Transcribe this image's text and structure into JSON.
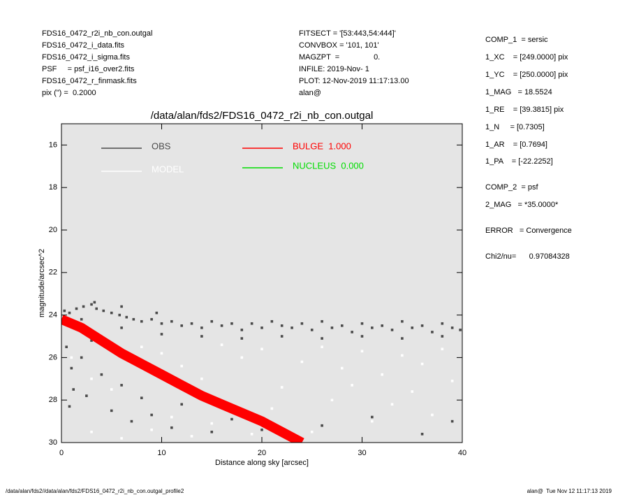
{
  "header": {
    "left": [
      "FDS16_0472_r2i_nb_con.outgal",
      "FDS16_0472_i_data.fits",
      "FDS16_0472_i_sigma.fits",
      "PSF     = psf_i16_over2.fits",
      "FDS16_0472_r_finmask.fits",
      "pix (\") =  0.2000"
    ],
    "middle": [
      "FITSECT = '[53:443,54:444]'",
      "CONVBOX = '101, 101'",
      "MAGZPT  =                0.",
      "INFILE: 2019-Nov- 1",
      "PLOT: 12-Nov-2019 11:17:13.00",
      "alan@"
    ],
    "right": [
      "COMP_1  = sersic",
      "1_XC    = [249.0000] pix",
      "1_YC    = [250.0000] pix",
      "1_MAG   = 18.5524",
      "1_RE    = [39.3815] pix",
      "1_N     = [0.7305]",
      "1_AR    = [0.7694]",
      "1_PA    = [-22.2252]",
      "COMP_2  = psf",
      "2_MAG   = *35.0000*",
      "ERROR   = Convergence",
      "Chi2/nu=      0.97084328"
    ]
  },
  "footer": {
    "left": "/data/alan/fds2//data/alan/fds2/FDS16_0472_r2i_nb_con.outgal_profile2",
    "right": "alan@  Tue Nov 12 11:17:13 2019"
  },
  "chart_data": {
    "type": "scatter",
    "title": "/data/alan/fds2/FDS16_0472_r2i_nb_con.outgal",
    "x_label": "Distance along sky [arcsec]",
    "y_label": "magnitude/arcsec^2",
    "xlim": [
      0,
      40
    ],
    "ylim": [
      30,
      15
    ],
    "xticks": [
      0,
      10,
      20,
      30,
      40
    ],
    "yticks": [
      16,
      18,
      20,
      22,
      24,
      26,
      28,
      30
    ],
    "background": "#e5e5e5",
    "series": [
      {
        "name": "OBS",
        "color": "#4a4a4a",
        "style": "points",
        "x": [
          0.3,
          0.8,
          1.5,
          2.2,
          3,
          3.5,
          4.2,
          5,
          5.8,
          6.5,
          7.2,
          8,
          9,
          10,
          11,
          12,
          13,
          14,
          15,
          16,
          17,
          18,
          19,
          20,
          21,
          22,
          23,
          24,
          25,
          26,
          27,
          28,
          29,
          30,
          31,
          32,
          33,
          34,
          35,
          36,
          37,
          38,
          39,
          39.8,
          2,
          6,
          10,
          14,
          18,
          22,
          26,
          30,
          34,
          38,
          0.5,
          1,
          1.2,
          0.8,
          2,
          2.5,
          3,
          4,
          5,
          6,
          7,
          8,
          9,
          11,
          12,
          15,
          17,
          20,
          26,
          31,
          36,
          39,
          3.3,
          6,
          9.5
        ],
        "values": [
          23.8,
          23.9,
          23.7,
          23.6,
          23.5,
          23.7,
          23.8,
          23.9,
          24.0,
          24.1,
          24.2,
          24.3,
          24.2,
          24.4,
          24.3,
          24.5,
          24.4,
          24.6,
          24.3,
          24.5,
          24.4,
          24.7,
          24.4,
          24.6,
          24.3,
          24.5,
          24.6,
          24.4,
          24.7,
          24.3,
          24.6,
          24.5,
          24.8,
          24.4,
          24.6,
          24.5,
          24.7,
          24.3,
          24.6,
          24.5,
          24.8,
          24.4,
          24.6,
          24.7,
          24.2,
          24.6,
          24.9,
          25.0,
          25.1,
          25.0,
          25.1,
          25.0,
          25.1,
          25.0,
          25.5,
          26.5,
          27.5,
          28.3,
          26.0,
          27.8,
          25.2,
          26.8,
          28.5,
          27.3,
          29.0,
          27.9,
          28.7,
          29.3,
          28.2,
          29.5,
          28.9,
          29.4,
          29.2,
          28.8,
          29.6,
          29.0,
          23.4,
          23.6,
          23.9
        ]
      },
      {
        "name": "MODEL",
        "color": "#ffffff",
        "style": "points",
        "x": [
          1,
          3,
          5,
          8,
          10,
          12,
          14,
          16,
          18,
          20,
          22,
          24,
          26,
          27,
          28,
          29,
          30,
          31,
          32,
          33,
          34,
          35,
          36,
          37,
          38,
          39,
          25,
          21,
          19,
          15,
          13,
          9,
          6,
          3,
          11
        ],
        "values": [
          26,
          27,
          27.5,
          25.5,
          25.8,
          26.4,
          27,
          25.4,
          26.0,
          25.6,
          27.4,
          26.2,
          25.5,
          28,
          26.5,
          27.3,
          25.7,
          29,
          26.8,
          28.2,
          25.9,
          27.6,
          26.3,
          28.7,
          25.6,
          27.1,
          29.5,
          28.4,
          29.6,
          29.1,
          29.7,
          29.4,
          29.8,
          29.5,
          28.8
        ]
      },
      {
        "name": "BULGE  1.000",
        "color": "#ff0000",
        "style": "band",
        "x": [
          0,
          2,
          4,
          6,
          8,
          10,
          12,
          14,
          16,
          18,
          20,
          22,
          24
        ],
        "values": [
          24.2,
          24.6,
          25.2,
          25.8,
          26.3,
          26.8,
          27.3,
          27.8,
          28.2,
          28.6,
          29.0,
          29.5,
          30
        ]
      },
      {
        "name": "NUCLEUS  0.000",
        "color": "#00dd00",
        "style": "band",
        "x": [],
        "values": []
      }
    ]
  }
}
